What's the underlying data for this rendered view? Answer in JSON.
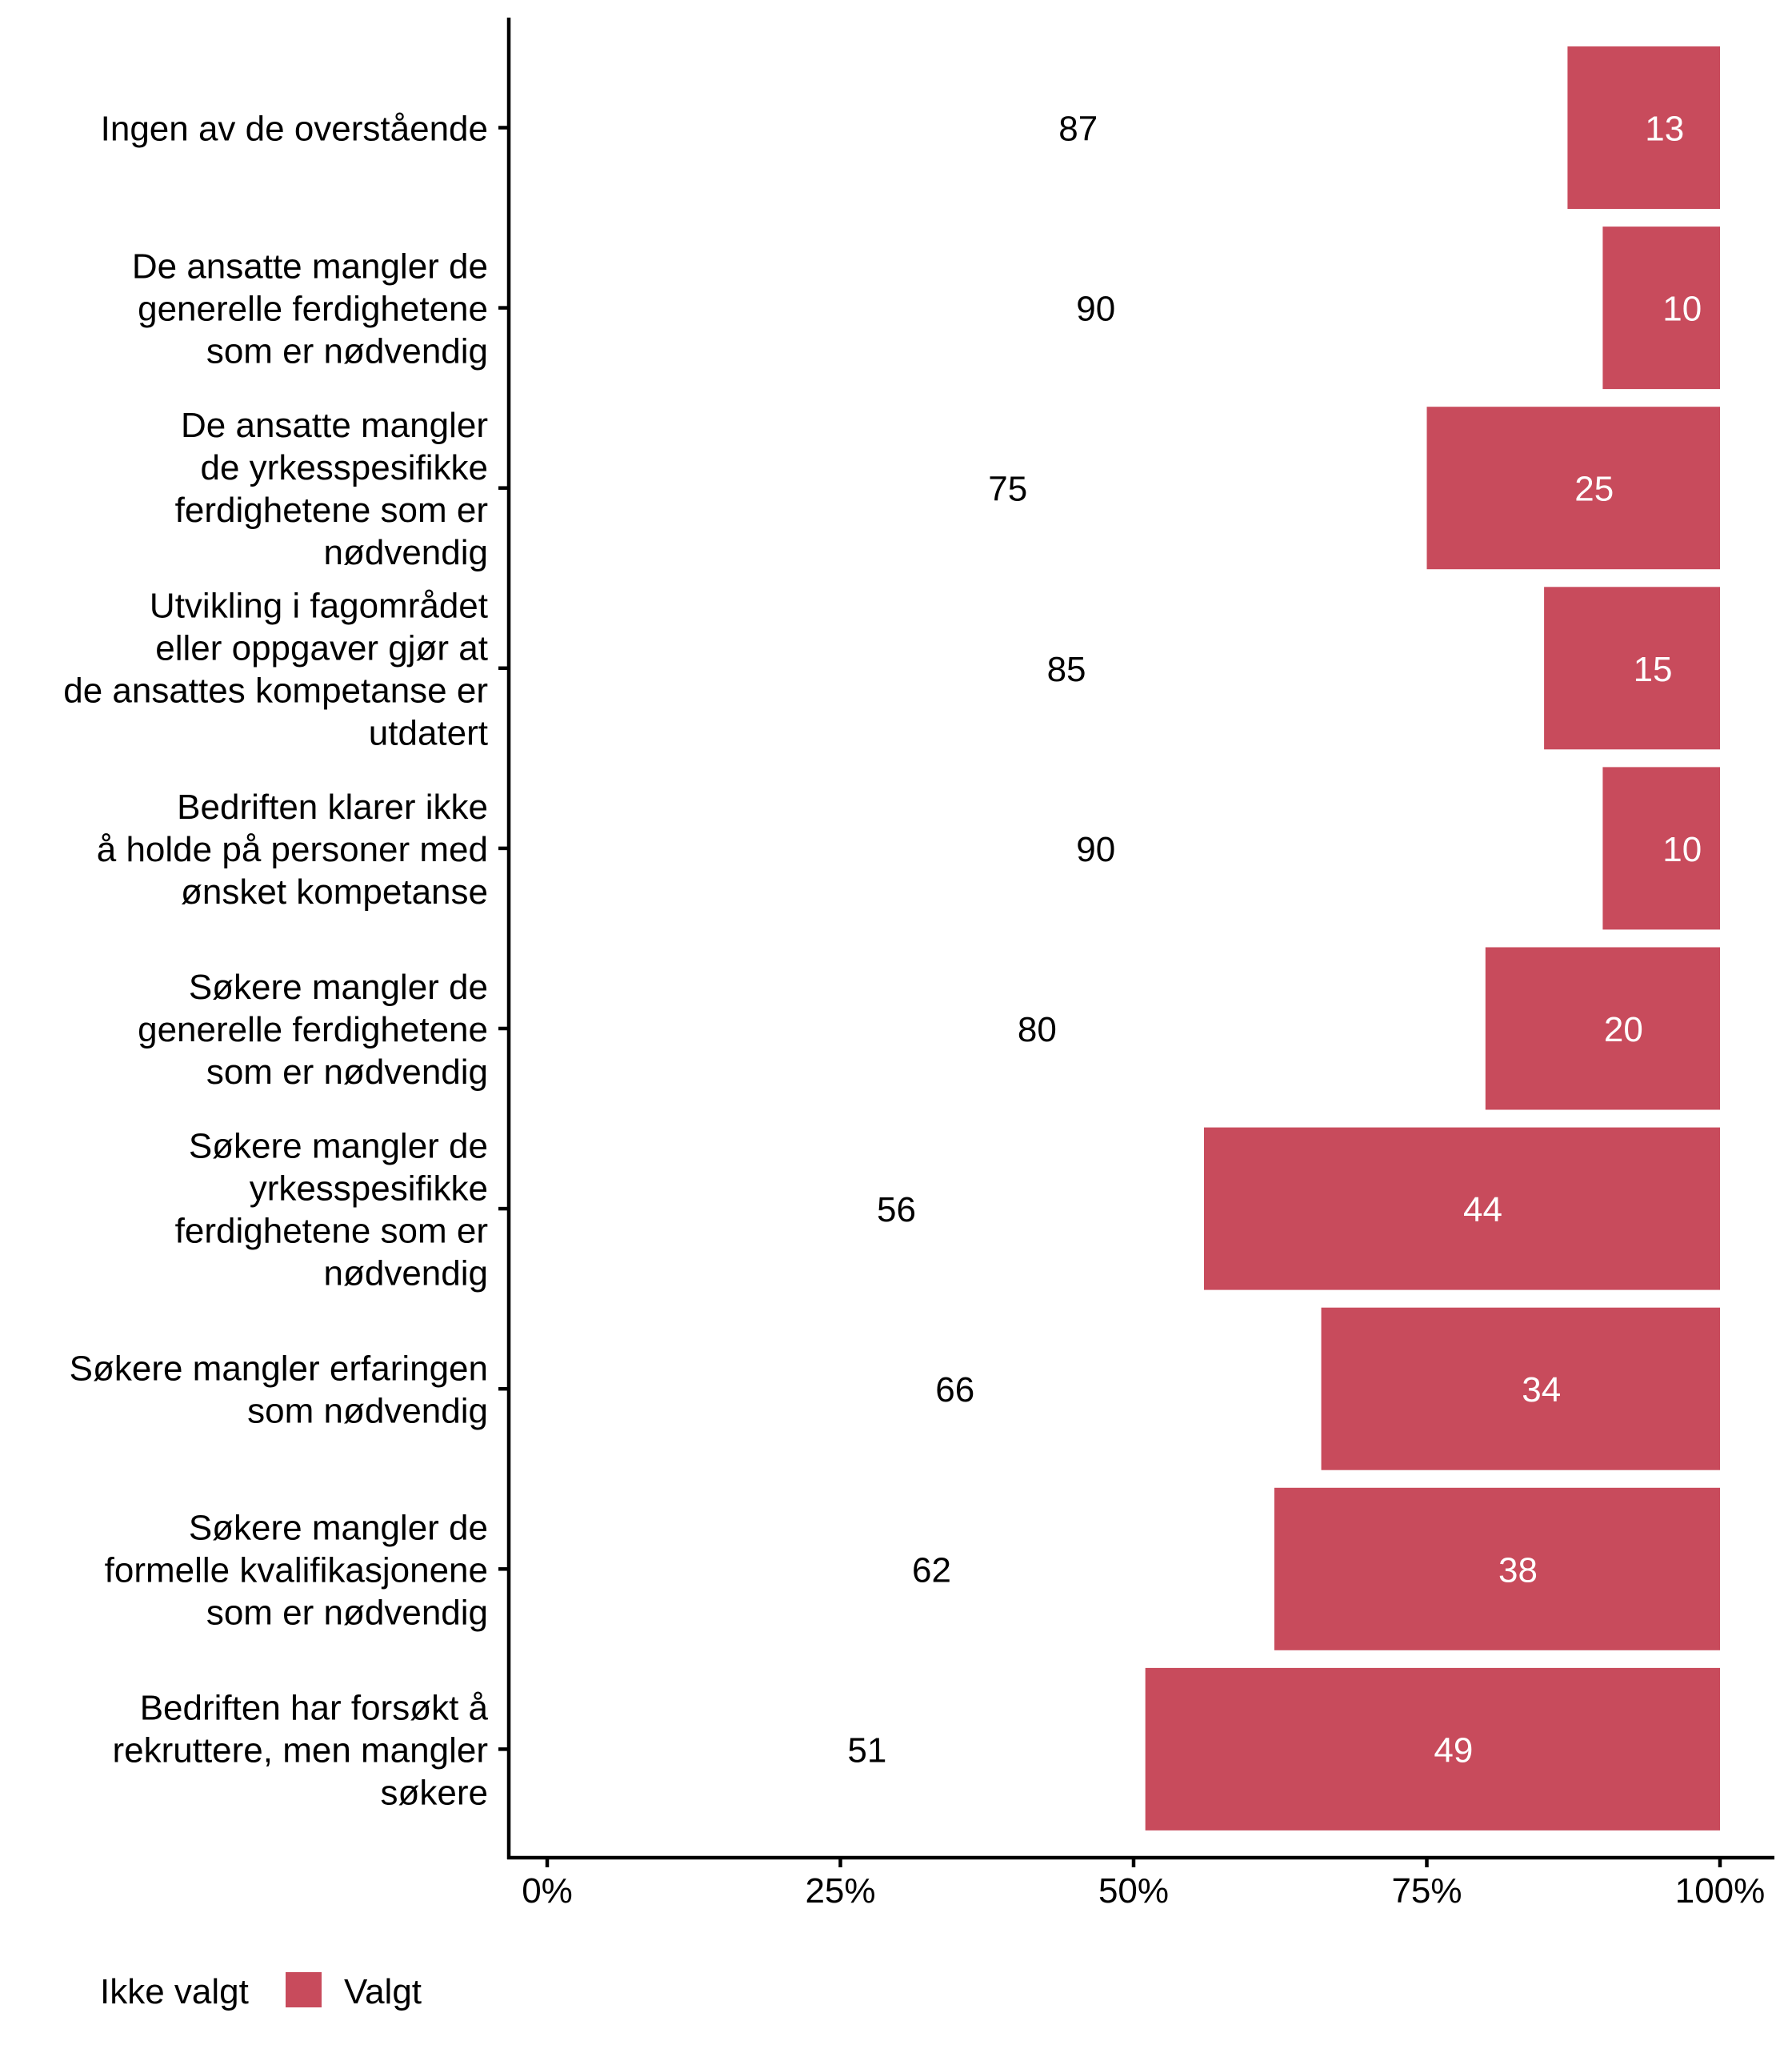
{
  "chart_data": {
    "type": "bar",
    "orientation": "horizontal",
    "stacked": true,
    "title": "",
    "xlabel": "",
    "ylabel": "",
    "xlim": [
      0,
      100
    ],
    "x_ticks": [
      "0%",
      "25%",
      "50%",
      "75%",
      "100%"
    ],
    "x_tick_values": [
      0,
      25,
      50,
      75,
      100
    ],
    "grid": false,
    "legend_position": "bottom-left",
    "categories": [
      [
        "Ingen av de overstående"
      ],
      [
        "De ansatte mangler de",
        "generelle ferdighetene",
        "som er nødvendig"
      ],
      [
        "De ansatte mangler",
        "de yrkesspesifikke",
        "ferdighetene som er",
        "nødvendig"
      ],
      [
        "Utvikling i fagområdet",
        "eller oppgaver gjør at",
        "de ansattes kompetanse er",
        "utdatert"
      ],
      [
        "Bedriften klarer ikke",
        "å holde på personer med",
        "ønsket kompetanse"
      ],
      [
        "Søkere mangler de",
        "generelle ferdighetene",
        "som er nødvendig"
      ],
      [
        "Søkere mangler de",
        "yrkesspesifikke",
        "ferdighetene som er",
        "nødvendig"
      ],
      [
        "Søkere mangler erfaringen",
        "som nødvendig"
      ],
      [
        "Søkere mangler de",
        "formelle kvalifikasjonene",
        "som er nødvendig"
      ],
      [
        "Bedriften har forsøkt å",
        "rekruttere, men mangler",
        "søkere"
      ]
    ],
    "series": [
      {
        "name": "Ikke valgt",
        "color": "#FFFFFF",
        "label_color": "#000000",
        "values": [
          87,
          90,
          75,
          85,
          90,
          80,
          56,
          66,
          62,
          51
        ]
      },
      {
        "name": "Valgt",
        "color": "#C84B5C",
        "label_color": "#FFFFFF",
        "values": [
          13,
          10,
          25,
          15,
          10,
          20,
          44,
          34,
          38,
          49
        ]
      }
    ]
  },
  "legend": {
    "items": [
      {
        "label": "Ikke valgt",
        "color": "#FFFFFF",
        "show_key": false
      },
      {
        "label": "Valgt",
        "color": "#C84B5C",
        "show_key": true
      }
    ]
  }
}
